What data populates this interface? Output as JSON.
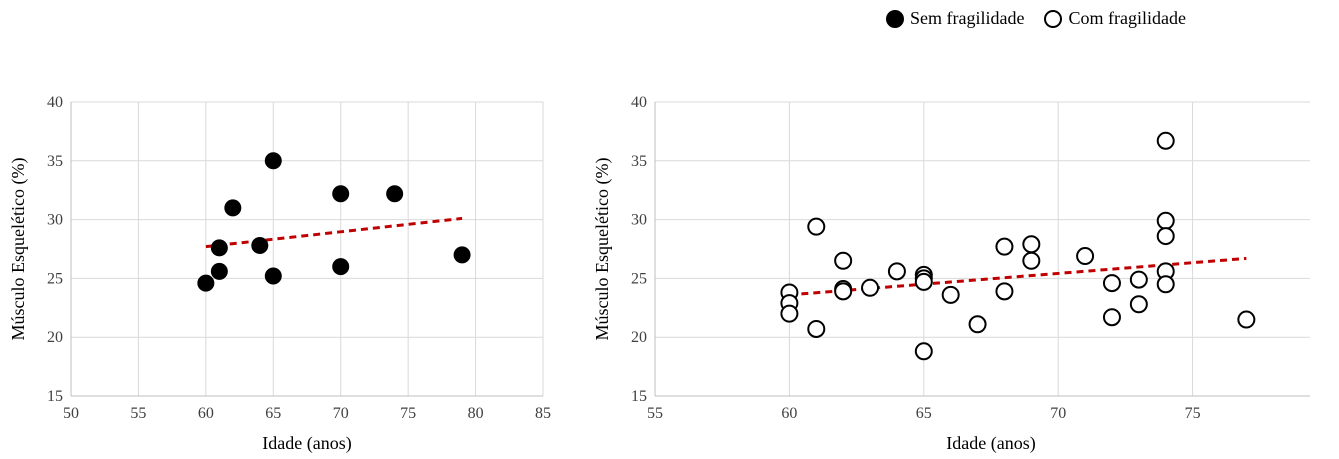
{
  "legend": {
    "items": [
      {
        "label": "Sem fragilidade",
        "marker": "filled-circle",
        "color": "#000000"
      },
      {
        "label": "Com fragilidade",
        "marker": "open-circle",
        "color": "#000000"
      }
    ]
  },
  "chart_data": [
    {
      "type": "scatter",
      "series_name": "Sem fragilidade",
      "marker": "filled-circle",
      "xlabel": "Idade (anos)",
      "ylabel": "Músculo Esquelético (%)",
      "xlim": [
        50,
        85
      ],
      "ylim": [
        15,
        40
      ],
      "xticks": [
        50,
        55,
        60,
        65,
        70,
        75,
        80,
        85
      ],
      "yticks": [
        15,
        20,
        25,
        30,
        35,
        40
      ],
      "grid": true,
      "points": [
        {
          "x": 60,
          "y": 24.6
        },
        {
          "x": 61,
          "y": 27.6
        },
        {
          "x": 61,
          "y": 25.6
        },
        {
          "x": 62,
          "y": 31.0
        },
        {
          "x": 64,
          "y": 27.8
        },
        {
          "x": 65,
          "y": 35.0
        },
        {
          "x": 65,
          "y": 25.2
        },
        {
          "x": 70,
          "y": 32.2
        },
        {
          "x": 70,
          "y": 26.0
        },
        {
          "x": 74,
          "y": 32.2
        },
        {
          "x": 79,
          "y": 27.0
        }
      ],
      "trendline": {
        "style": "dashed",
        "color": "#c00000",
        "x": [
          60,
          79
        ],
        "y": [
          27.7,
          30.1
        ]
      }
    },
    {
      "type": "scatter",
      "series_name": "Com fragilidade",
      "marker": "open-circle",
      "xlabel": "Idade (anos)",
      "ylabel": "Músculo Esquelético (%)",
      "xlim": [
        55,
        80
      ],
      "ylim": [
        15,
        40
      ],
      "xticks": [
        55,
        60,
        65,
        70,
        75,
        80
      ],
      "yticks": [
        15,
        20,
        25,
        30,
        35,
        40
      ],
      "grid": true,
      "points": [
        {
          "x": 60,
          "y": 23.8
        },
        {
          "x": 60,
          "y": 22.9
        },
        {
          "x": 60,
          "y": 22.0
        },
        {
          "x": 61,
          "y": 29.4
        },
        {
          "x": 61,
          "y": 20.7
        },
        {
          "x": 62,
          "y": 26.5
        },
        {
          "x": 62,
          "y": 24.1
        },
        {
          "x": 62,
          "y": 23.9
        },
        {
          "x": 63,
          "y": 24.2
        },
        {
          "x": 64,
          "y": 25.6
        },
        {
          "x": 65,
          "y": 25.3
        },
        {
          "x": 65,
          "y": 25.0
        },
        {
          "x": 65,
          "y": 24.7
        },
        {
          "x": 65,
          "y": 18.8
        },
        {
          "x": 66,
          "y": 23.6
        },
        {
          "x": 67,
          "y": 21.1
        },
        {
          "x": 68,
          "y": 27.7
        },
        {
          "x": 68,
          "y": 23.9
        },
        {
          "x": 69,
          "y": 27.9
        },
        {
          "x": 69,
          "y": 26.5
        },
        {
          "x": 71,
          "y": 26.9
        },
        {
          "x": 72,
          "y": 24.6
        },
        {
          "x": 72,
          "y": 21.7
        },
        {
          "x": 73,
          "y": 24.9
        },
        {
          "x": 73,
          "y": 22.8
        },
        {
          "x": 74,
          "y": 36.7
        },
        {
          "x": 74,
          "y": 29.9
        },
        {
          "x": 74,
          "y": 28.6
        },
        {
          "x": 74,
          "y": 25.6
        },
        {
          "x": 74,
          "y": 24.5
        },
        {
          "x": 77,
          "y": 21.5
        }
      ],
      "trendline": {
        "style": "dashed",
        "color": "#c00000",
        "x": [
          60,
          77
        ],
        "y": [
          23.6,
          26.7
        ]
      }
    }
  ]
}
